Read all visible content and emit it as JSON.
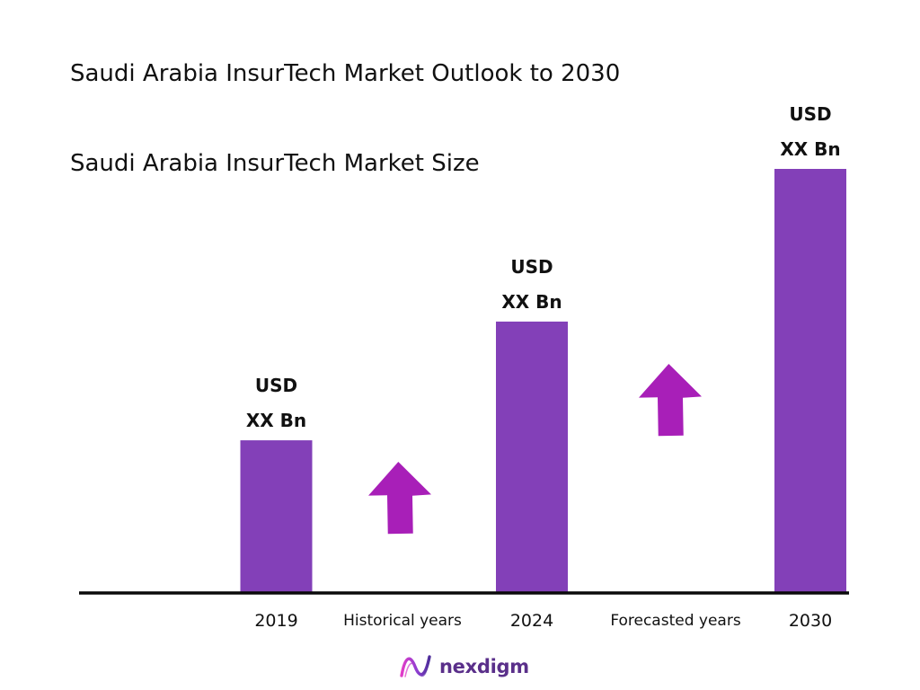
{
  "title": "Saudi Arabia InsurTech Market Outlook to 2030",
  "subtitle": "Saudi Arabia InsurTech Market Size",
  "chart_data": {
    "type": "bar",
    "categories": [
      "2019",
      "2024",
      "2030"
    ],
    "values": [
      36,
      64,
      100
    ],
    "value_labels": [
      [
        "USD",
        "XX Bn"
      ],
      [
        "USD",
        "XX Bn"
      ],
      [
        "USD",
        "XX Bn"
      ]
    ],
    "period_labels": [
      "Historical years",
      "Forecasted years"
    ],
    "bar_color": "#8340b8",
    "arrow_color": "#a81fb8",
    "grid": false
  },
  "logo": {
    "text": "nexdigm",
    "icon": "nexdigm-logo-icon",
    "color": "#5a2f8a"
  }
}
